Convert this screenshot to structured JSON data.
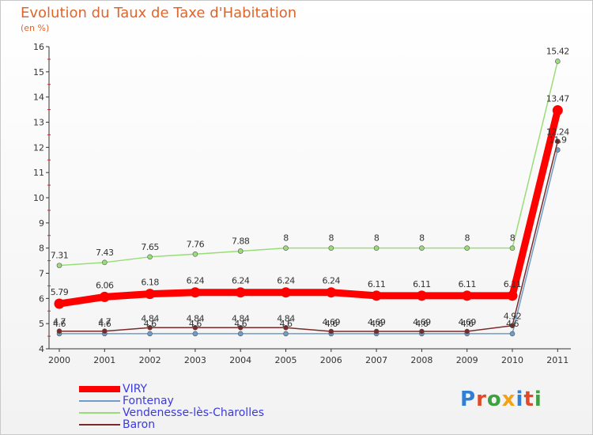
{
  "header": {
    "title": "Evolution du Taux de Taxe d'Habitation",
    "subtitle": "(en %)"
  },
  "logo": {
    "text": "Proxiti",
    "colors": [
      "#2f7fd6",
      "#e04a2a",
      "#3fa040",
      "#f2a21a",
      "#2f7fd6",
      "#e04a2a",
      "#3fa040"
    ]
  },
  "chart_data": {
    "type": "line",
    "title": "Evolution du Taux de Taxe d'Habitation",
    "ylabel": "(en %)",
    "xlabel": "",
    "x": [
      "2000",
      "2001",
      "2002",
      "2003",
      "2004",
      "2005",
      "2006",
      "2007",
      "2008",
      "2009",
      "2010",
      "2011"
    ],
    "ylim": [
      4,
      16
    ],
    "yticks": [
      "4",
      "5",
      "6",
      "7",
      "8",
      "9",
      "10",
      "11",
      "12",
      "13",
      "14",
      "15",
      "16"
    ],
    "grid": false,
    "legend_position": "bottom-left",
    "series": [
      {
        "name": "VIRY",
        "color": "#ff0000",
        "values": [
          5.79,
          6.06,
          6.18,
          6.24,
          6.24,
          6.24,
          6.24,
          6.11,
          6.11,
          6.11,
          6.11,
          13.47
        ],
        "labels": [
          "5.79",
          "6.06",
          "6.18",
          "6.24",
          "6.24",
          "6.24",
          "6.24",
          "6.11",
          "6.11",
          "6.11",
          "6.11",
          "13.47"
        ]
      },
      {
        "name": "Fontenay",
        "color": "#6f9cc8",
        "values": [
          4.6,
          4.6,
          4.6,
          4.6,
          4.6,
          4.6,
          4.6,
          4.6,
          4.6,
          4.6,
          4.6,
          11.9
        ],
        "labels": [
          "4.6",
          "4.6",
          "4.6",
          "4.6",
          "4.6",
          "4.6",
          "4.6",
          "4.6",
          "4.6",
          "4.6",
          "4.6",
          "11.9"
        ]
      },
      {
        "name": "Vendenesse-lès-Charolles",
        "color": "#99dd77",
        "values": [
          7.31,
          7.43,
          7.65,
          7.76,
          7.88,
          8,
          8,
          8,
          8,
          8,
          8,
          15.42
        ],
        "labels": [
          "7.31",
          "7.43",
          "7.65",
          "7.76",
          "7.88",
          "8",
          "8",
          "8",
          "8",
          "8",
          "8",
          "15.42"
        ]
      },
      {
        "name": "Baron",
        "color": "#7a2a2a",
        "values": [
          4.7,
          4.7,
          4.84,
          4.84,
          4.84,
          4.84,
          4.69,
          4.69,
          4.69,
          4.69,
          4.92,
          12.24
        ],
        "labels": [
          "4.7",
          "4.7",
          "4.84",
          "4.84",
          "4.84",
          "4.84",
          "4.69",
          "4.69",
          "4.69",
          "4.69",
          "4.92",
          "12.24"
        ]
      }
    ]
  }
}
